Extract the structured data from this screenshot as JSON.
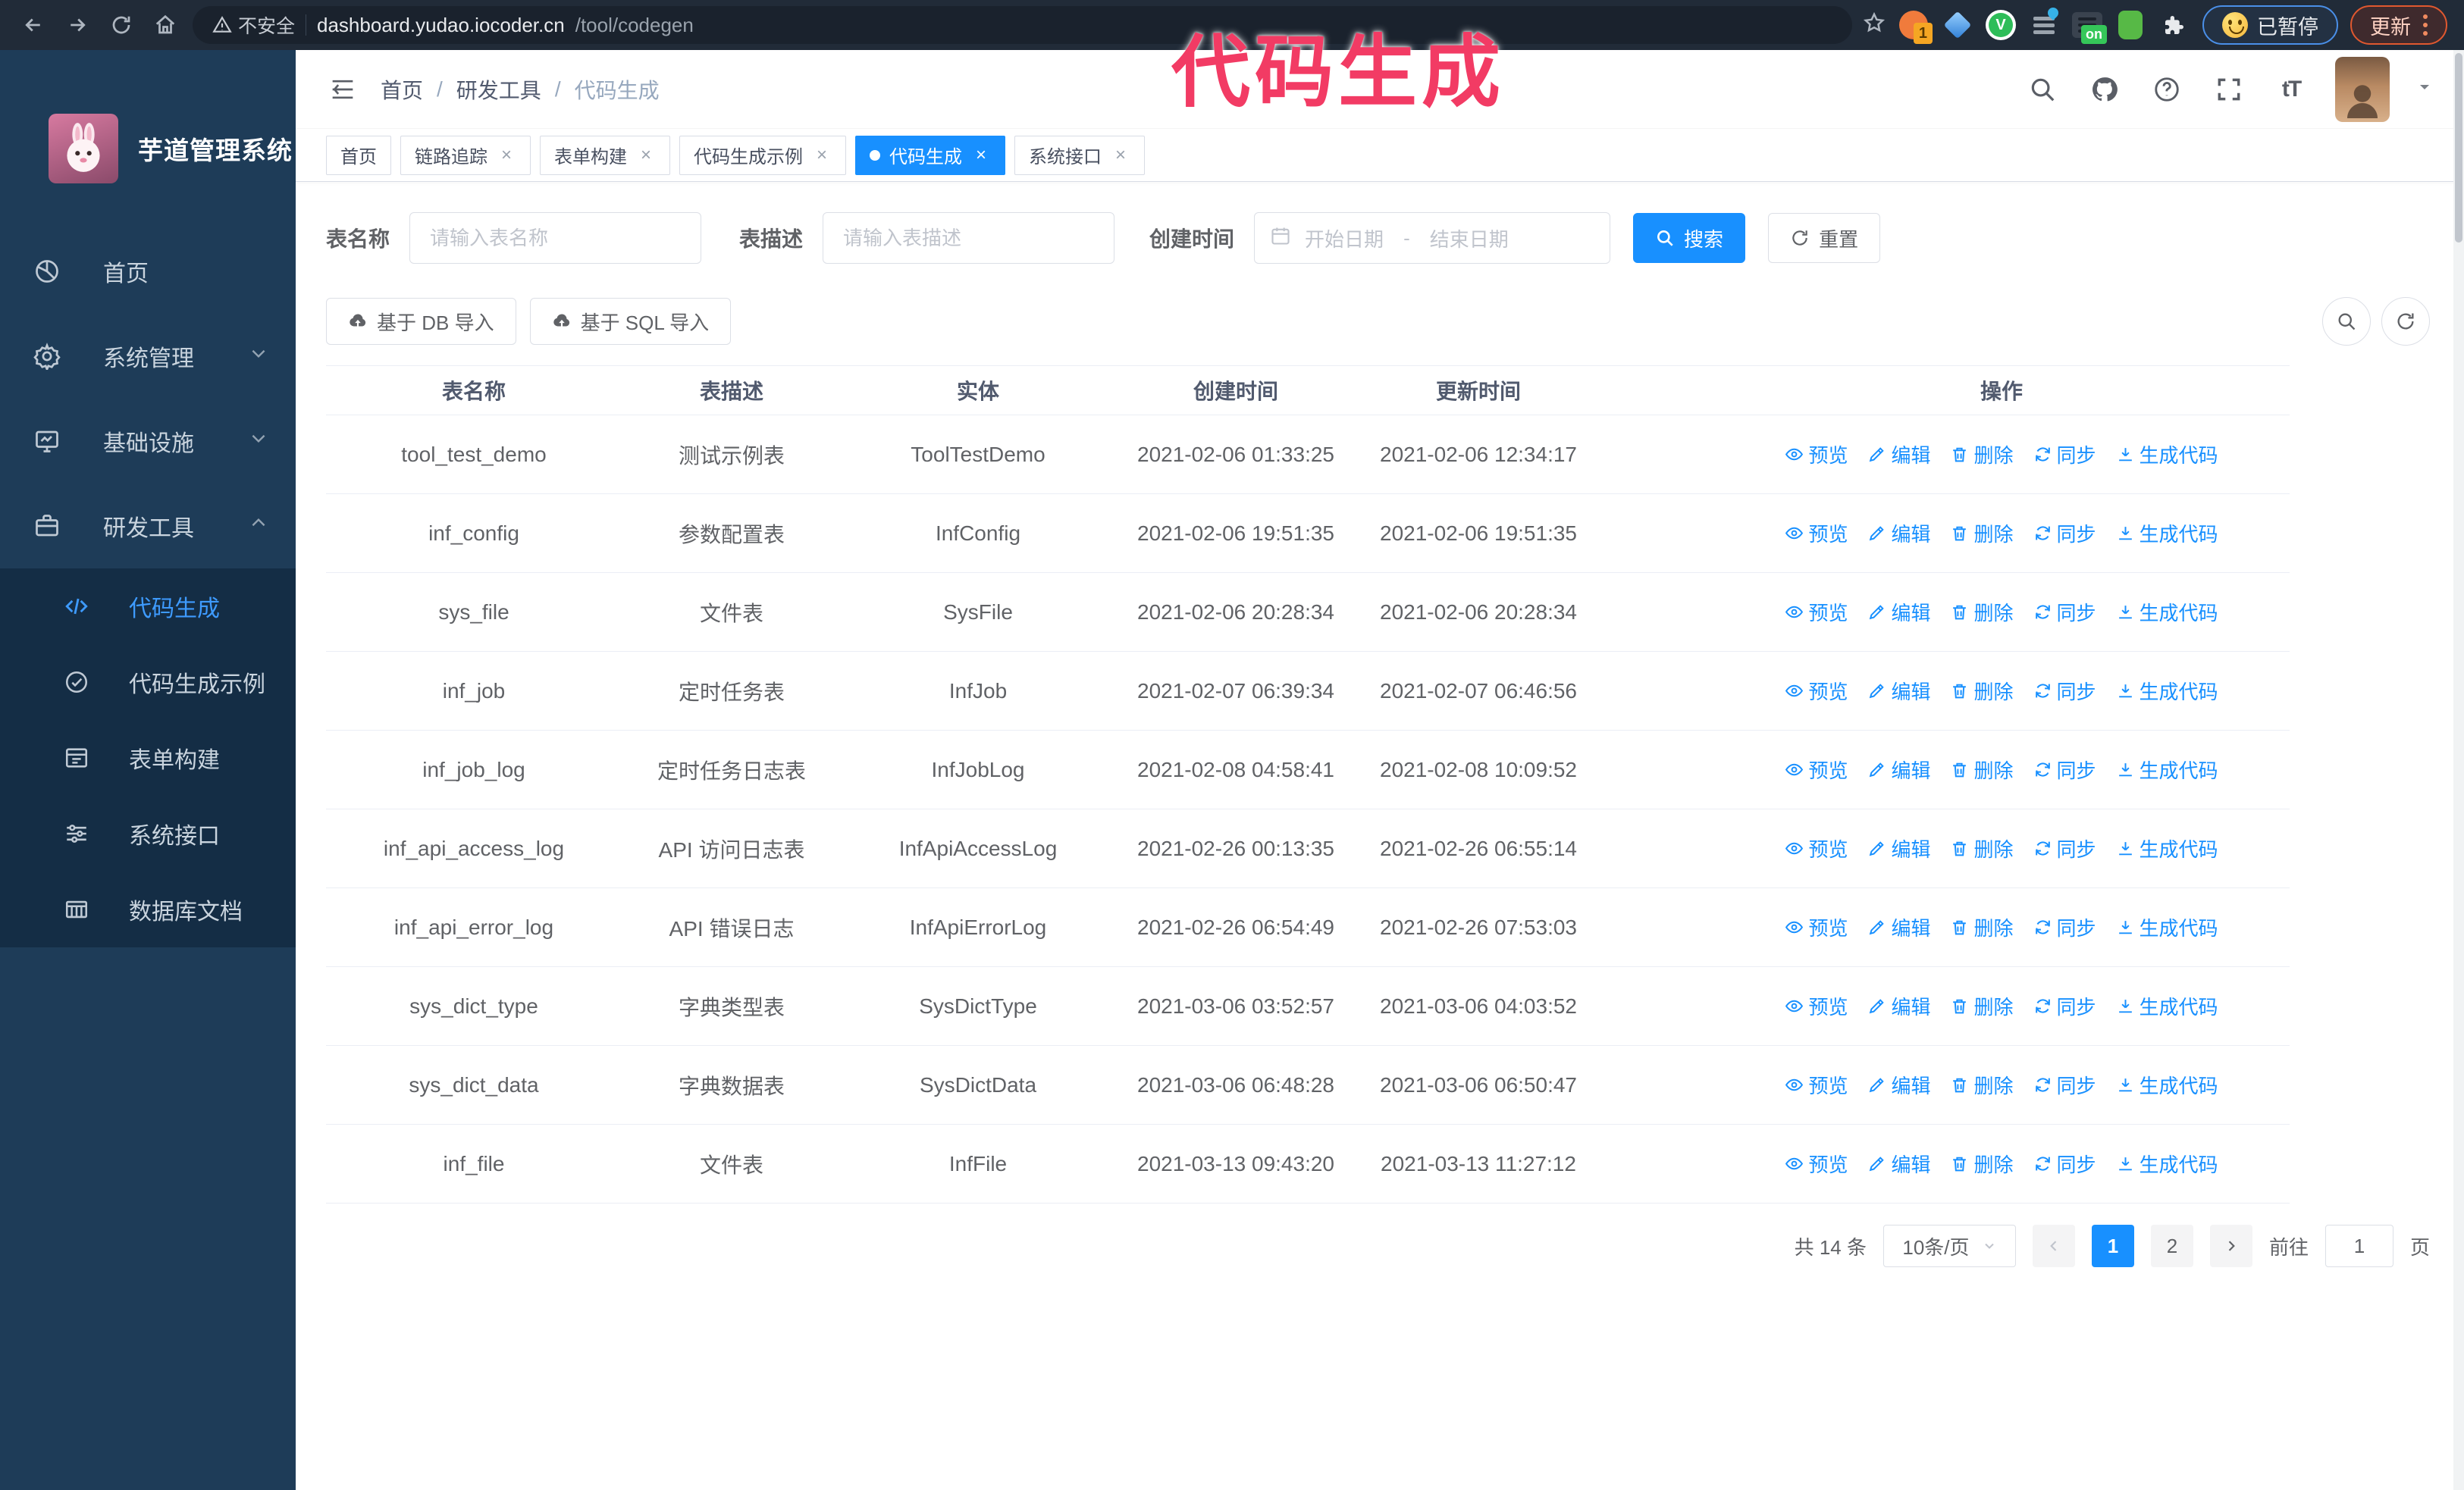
{
  "browser": {
    "security_warning": "不安全",
    "url_host": "dashboard.yudao.iocoder.cn",
    "url_path": "/tool/codegen",
    "extension_badge_count": "1",
    "extension_on_label": "on",
    "extension_v_label": "V",
    "paused_badge": "已暂停",
    "update_button": "更新"
  },
  "annotation": "代码生成",
  "sidebar": {
    "title": "芋道管理系统",
    "items": [
      {
        "label": "首页",
        "icon": "dashboard-icon"
      },
      {
        "label": "系统管理",
        "icon": "gear-icon",
        "chevron": "down"
      },
      {
        "label": "基础设施",
        "icon": "infrastructure-icon",
        "chevron": "down"
      },
      {
        "label": "研发工具",
        "icon": "dev-tools-icon",
        "chevron": "up"
      }
    ],
    "submenu": [
      {
        "label": "代码生成",
        "icon": "code-icon",
        "active": true
      },
      {
        "label": "代码生成示例",
        "icon": "shield-check-icon",
        "active": false
      },
      {
        "label": "表单构建",
        "icon": "form-icon",
        "active": false
      },
      {
        "label": "系统接口",
        "icon": "sliders-icon",
        "active": false
      },
      {
        "label": "数据库文档",
        "icon": "database-doc-icon",
        "active": false
      }
    ]
  },
  "header": {
    "breadcrumb": {
      "0": "首页",
      "1": "研发工具",
      "2": "代码生成"
    },
    "separator": "/"
  },
  "tabs": [
    {
      "label": "首页",
      "closable": false,
      "active": false
    },
    {
      "label": "链路追踪",
      "closable": true,
      "active": false
    },
    {
      "label": "表单构建",
      "closable": true,
      "active": false
    },
    {
      "label": "代码生成示例",
      "closable": true,
      "active": false
    },
    {
      "label": "代码生成",
      "closable": true,
      "active": true
    },
    {
      "label": "系统接口",
      "closable": true,
      "active": false
    }
  ],
  "filters": {
    "table_name_label": "表名称",
    "table_name_placeholder": "请输入表名称",
    "table_desc_label": "表描述",
    "table_desc_placeholder": "请输入表描述",
    "create_time_label": "创建时间",
    "date_start_placeholder": "开始日期",
    "date_separator": "-",
    "date_end_placeholder": "结束日期",
    "search_label": "搜索",
    "reset_label": "重置"
  },
  "toolbar": {
    "import_db_label": "基于 DB 导入",
    "import_sql_label": "基于 SQL 导入"
  },
  "table": {
    "columns": [
      "表名称",
      "表描述",
      "实体",
      "创建时间",
      "更新时间",
      "操作"
    ],
    "actions": [
      {
        "label": "预览",
        "name": "preview",
        "icon": "eye-icon"
      },
      {
        "label": "编辑",
        "name": "edit",
        "icon": "edit-icon"
      },
      {
        "label": "删除",
        "name": "delete",
        "icon": "trash-icon"
      },
      {
        "label": "同步",
        "name": "sync",
        "icon": "sync-icon"
      },
      {
        "label": "生成代码",
        "name": "generate-code",
        "icon": "download-icon"
      }
    ],
    "rows": [
      {
        "name": "tool_test_demo",
        "desc": "测试示例表",
        "entity": "ToolTestDemo",
        "created": "2021-02-06 01:33:25",
        "updated": "2021-02-06 12:34:17"
      },
      {
        "name": "inf_config",
        "desc": "参数配置表",
        "entity": "InfConfig",
        "created": "2021-02-06 19:51:35",
        "updated": "2021-02-06 19:51:35"
      },
      {
        "name": "sys_file",
        "desc": "文件表",
        "entity": "SysFile",
        "created": "2021-02-06 20:28:34",
        "updated": "2021-02-06 20:28:34"
      },
      {
        "name": "inf_job",
        "desc": "定时任务表",
        "entity": "InfJob",
        "created": "2021-02-07 06:39:34",
        "updated": "2021-02-07 06:46:56"
      },
      {
        "name": "inf_job_log",
        "desc": "定时任务日志表",
        "entity": "InfJobLog",
        "created": "2021-02-08 04:58:41",
        "updated": "2021-02-08 10:09:52"
      },
      {
        "name": "inf_api_access_log",
        "desc": "API 访问日志表",
        "entity": "InfApiAccessLog",
        "created": "2021-02-26 00:13:35",
        "updated": "2021-02-26 06:55:14"
      },
      {
        "name": "inf_api_error_log",
        "desc": "API 错误日志",
        "entity": "InfApiErrorLog",
        "created": "2021-02-26 06:54:49",
        "updated": "2021-02-26 07:53:03"
      },
      {
        "name": "sys_dict_type",
        "desc": "字典类型表",
        "entity": "SysDictType",
        "created": "2021-03-06 03:52:57",
        "updated": "2021-03-06 04:03:52"
      },
      {
        "name": "sys_dict_data",
        "desc": "字典数据表",
        "entity": "SysDictData",
        "created": "2021-03-06 06:48:28",
        "updated": "2021-03-06 06:50:47"
      },
      {
        "name": "inf_file",
        "desc": "文件表",
        "entity": "InfFile",
        "created": "2021-03-13 09:43:20",
        "updated": "2021-03-13 11:27:12"
      }
    ]
  },
  "pagination": {
    "total": "共 14 条",
    "page_size": "10条/页",
    "pages": {
      "0": "1",
      "1": "2"
    },
    "active_page": "1",
    "goto_label": "前往",
    "goto_value": "1",
    "goto_suffix": "页"
  },
  "colors": {
    "accent": "#1890ff",
    "sidebar": "#1e3c58",
    "sidebar_sub": "#142d45",
    "annotation": "#f23b64",
    "chrome": "#212b38"
  }
}
